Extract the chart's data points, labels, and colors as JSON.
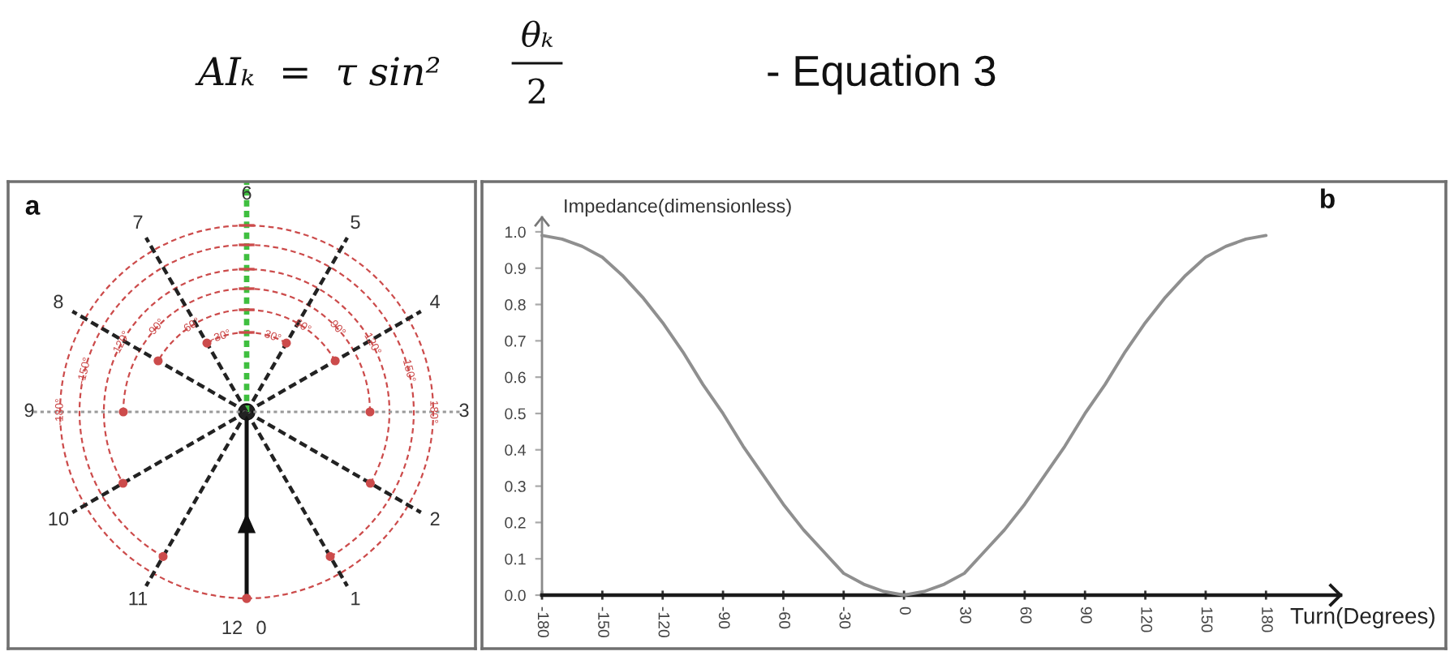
{
  "chart_data": [
    {
      "type": "other",
      "title": "a",
      "categories": [
        "0",
        "1",
        "2",
        "3",
        "4",
        "5",
        "6",
        "7",
        "8",
        "9",
        "10",
        "11",
        "12"
      ],
      "annotations": [
        "-30°",
        "-60°",
        "-90°",
        "-120°",
        "-150°",
        "-180°",
        "30°",
        "60°",
        "90°",
        "120°",
        "150°",
        "180°"
      ]
    },
    {
      "type": "line",
      "title": "b",
      "xlabel": "Turn(Degrees)",
      "ylabel": "Impedance(dimensionless)",
      "color": "#8f8f8f",
      "x": [
        -180,
        -170,
        -160,
        -150,
        -140,
        -130,
        -120,
        -110,
        -100,
        -90,
        -80,
        -70,
        -60,
        -50,
        -40,
        -30,
        -20,
        -10,
        0,
        10,
        20,
        30,
        40,
        50,
        60,
        70,
        80,
        90,
        100,
        110,
        120,
        130,
        140,
        150,
        160,
        170,
        180
      ],
      "values": [
        0.99,
        0.98,
        0.96,
        0.93,
        0.88,
        0.82,
        0.75,
        0.67,
        0.58,
        0.5,
        0.41,
        0.33,
        0.25,
        0.18,
        0.12,
        0.06,
        0.03,
        0.01,
        0.0,
        0.01,
        0.03,
        0.06,
        0.12,
        0.18,
        0.25,
        0.33,
        0.41,
        0.5,
        0.58,
        0.67,
        0.75,
        0.82,
        0.88,
        0.93,
        0.96,
        0.98,
        0.99
      ],
      "xlim": [
        -180,
        217
      ],
      "ylim": [
        0,
        1.04
      ],
      "xticks": [
        -180,
        -150,
        -120,
        -90,
        -60,
        -30,
        0,
        30,
        60,
        90,
        120,
        150,
        180
      ],
      "yticks": [
        {
          "value": 0,
          "label": "0.0"
        },
        0.1,
        0.2,
        0.3,
        0.4,
        0.5,
        0.6,
        0.7,
        0.8,
        0.9,
        {
          "value": 1,
          "label": "1.0"
        }
      ],
      "annotations": [
        "AIₖ  =  τ sin²",
        "θₖ",
        "2",
        "- Equation 3"
      ]
    }
  ]
}
